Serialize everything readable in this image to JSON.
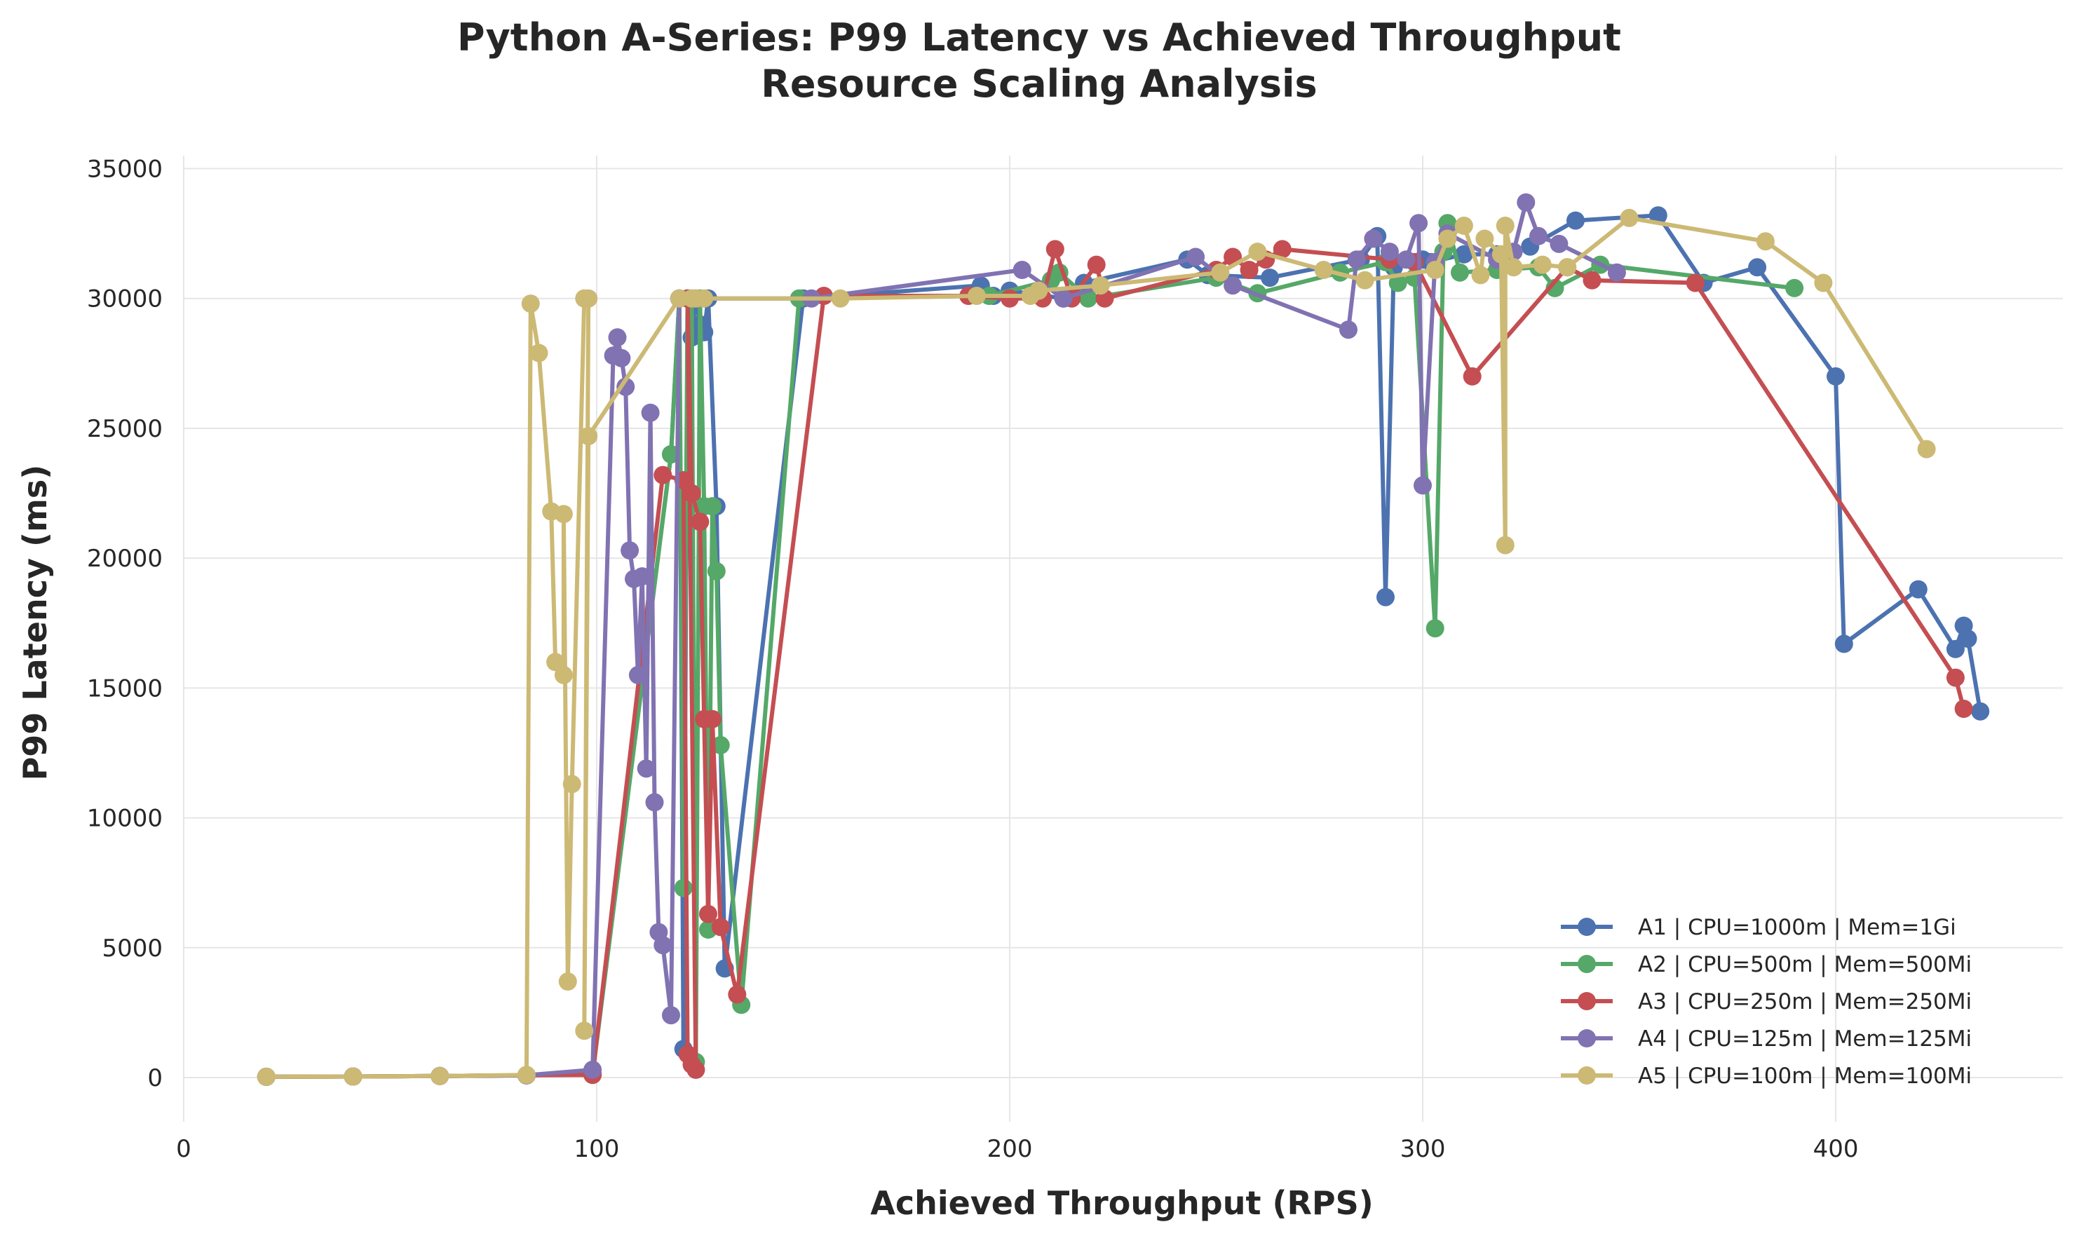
{
  "chart_data": {
    "type": "line",
    "title": "Python A-Series: P99 Latency vs Achieved Throughput",
    "subtitle": "Resource Scaling Analysis",
    "xlabel": "Achieved Throughput (RPS)",
    "ylabel": "P99 Latency (ms)",
    "xlim": [
      0,
      455
    ],
    "ylim": [
      -1700,
      35500
    ],
    "xticks": [
      0,
      100,
      200,
      300,
      400
    ],
    "yticks": [
      0,
      5000,
      10000,
      15000,
      20000,
      25000,
      30000,
      35000
    ],
    "grid": true,
    "legend_position": "bottom-right",
    "series": [
      {
        "name": "A1 | CPU=1000m | Mem=1Gi",
        "color": "#4c72b0",
        "points": [
          [
            20,
            30
          ],
          [
            41,
            40
          ],
          [
            62,
            60
          ],
          [
            83,
            90
          ],
          [
            99,
            150
          ],
          [
            118,
            24000
          ],
          [
            120,
            30000
          ],
          [
            121,
            1100
          ],
          [
            122,
            30000
          ],
          [
            123,
            28500
          ],
          [
            124,
            30000
          ],
          [
            125,
            29000
          ],
          [
            126,
            28700
          ],
          [
            127,
            30000
          ],
          [
            129,
            22000
          ],
          [
            131,
            4200
          ],
          [
            150,
            30000
          ],
          [
            193,
            30500
          ],
          [
            196,
            30100
          ],
          [
            200,
            30300
          ],
          [
            213,
            30000
          ],
          [
            218,
            30600
          ],
          [
            243,
            31500
          ],
          [
            248,
            30900
          ],
          [
            263,
            30800
          ],
          [
            285,
            31500
          ],
          [
            289,
            32400
          ],
          [
            291,
            18500
          ],
          [
            293,
            31200
          ],
          [
            300,
            31500
          ],
          [
            302,
            31400
          ],
          [
            310,
            31700
          ],
          [
            318,
            31700
          ],
          [
            326,
            32000
          ],
          [
            337,
            33000
          ],
          [
            357,
            33200
          ],
          [
            368,
            30600
          ],
          [
            381,
            31200
          ],
          [
            400,
            27000
          ],
          [
            402,
            16700
          ],
          [
            420,
            18800
          ],
          [
            429,
            16500
          ],
          [
            431,
            17400
          ],
          [
            432,
            16900
          ],
          [
            435,
            14100
          ]
        ]
      },
      {
        "name": "A2 | CPU=500m | Mem=500Mi",
        "color": "#55a868",
        "points": [
          [
            20,
            30
          ],
          [
            41,
            40
          ],
          [
            62,
            60
          ],
          [
            83,
            90
          ],
          [
            99,
            120
          ],
          [
            118,
            24000
          ],
          [
            120,
            30000
          ],
          [
            121,
            7300
          ],
          [
            122,
            30000
          ],
          [
            123,
            30000
          ],
          [
            124,
            600
          ],
          [
            125,
            30000
          ],
          [
            126,
            22000
          ],
          [
            127,
            5700
          ],
          [
            128,
            22000
          ],
          [
            129,
            19500
          ],
          [
            130,
            12800
          ],
          [
            135,
            2800
          ],
          [
            149,
            30000
          ],
          [
            195,
            30100
          ],
          [
            210,
            30700
          ],
          [
            212,
            31000
          ],
          [
            219,
            30000
          ],
          [
            250,
            30800
          ],
          [
            260,
            30200
          ],
          [
            280,
            31000
          ],
          [
            291,
            31400
          ],
          [
            294,
            30600
          ],
          [
            298,
            30800
          ],
          [
            303,
            17300
          ],
          [
            305,
            31800
          ],
          [
            306,
            32900
          ],
          [
            309,
            31000
          ],
          [
            318,
            31100
          ],
          [
            328,
            31200
          ],
          [
            332,
            30400
          ],
          [
            343,
            31300
          ],
          [
            390,
            30400
          ]
        ]
      },
      {
        "name": "A3 | CPU=250m | Mem=250Mi",
        "color": "#c44e52",
        "points": [
          [
            20,
            30
          ],
          [
            41,
            40
          ],
          [
            62,
            60
          ],
          [
            83,
            90
          ],
          [
            99,
            100
          ],
          [
            116,
            23200
          ],
          [
            121,
            23000
          ],
          [
            122,
            900
          ],
          [
            123,
            500
          ],
          [
            124,
            300
          ],
          [
            122,
            30000
          ],
          [
            123,
            22500
          ],
          [
            125,
            21400
          ],
          [
            126,
            13800
          ],
          [
            127,
            6300
          ],
          [
            128,
            13800
          ],
          [
            130,
            5800
          ],
          [
            134,
            3200
          ],
          [
            155,
            30100
          ],
          [
            190,
            30100
          ],
          [
            200,
            30000
          ],
          [
            208,
            30000
          ],
          [
            211,
            31900
          ],
          [
            215,
            30000
          ],
          [
            221,
            31300
          ],
          [
            223,
            30000
          ],
          [
            250,
            31100
          ],
          [
            254,
            31600
          ],
          [
            258,
            31100
          ],
          [
            262,
            31500
          ],
          [
            266,
            31900
          ],
          [
            292,
            31500
          ],
          [
            298,
            31400
          ],
          [
            312,
            27000
          ],
          [
            335,
            31200
          ],
          [
            341,
            30700
          ],
          [
            366,
            30600
          ],
          [
            429,
            15400
          ],
          [
            431,
            14200
          ]
        ]
      },
      {
        "name": "A4 | CPU=125m | Mem=125Mi",
        "color": "#8172b2",
        "points": [
          [
            20,
            30
          ],
          [
            41,
            40
          ],
          [
            62,
            60
          ],
          [
            83,
            90
          ],
          [
            99,
            300
          ],
          [
            104,
            27800
          ],
          [
            105,
            28500
          ],
          [
            106,
            27700
          ],
          [
            107,
            26600
          ],
          [
            108,
            20300
          ],
          [
            109,
            19200
          ],
          [
            110,
            15500
          ],
          [
            111,
            19300
          ],
          [
            112,
            11900
          ],
          [
            113,
            25600
          ],
          [
            114,
            10600
          ],
          [
            115,
            5600
          ],
          [
            116,
            5100
          ],
          [
            118,
            2400
          ],
          [
            120,
            30000
          ],
          [
            152,
            30000
          ],
          [
            203,
            31100
          ],
          [
            213,
            30000
          ],
          [
            245,
            31600
          ],
          [
            254,
            30500
          ],
          [
            282,
            28800
          ],
          [
            284,
            31500
          ],
          [
            288,
            32300
          ],
          [
            292,
            31800
          ],
          [
            296,
            31500
          ],
          [
            299,
            32900
          ],
          [
            300,
            22800
          ],
          [
            303,
            31400
          ],
          [
            306,
            32500
          ],
          [
            318,
            31500
          ],
          [
            322,
            31800
          ],
          [
            325,
            33700
          ],
          [
            328,
            32400
          ],
          [
            333,
            32100
          ],
          [
            347,
            31000
          ]
        ]
      },
      {
        "name": "A5 | CPU=100m | Mem=100Mi",
        "color": "#ccb974",
        "points": [
          [
            20,
            30
          ],
          [
            41,
            40
          ],
          [
            62,
            60
          ],
          [
            83,
            100
          ],
          [
            84,
            29800
          ],
          [
            86,
            27900
          ],
          [
            89,
            21800
          ],
          [
            90,
            16000
          ],
          [
            92,
            15500
          ],
          [
            92,
            21700
          ],
          [
            93,
            3700
          ],
          [
            94,
            11300
          ],
          [
            97,
            30000
          ],
          [
            98,
            30000
          ],
          [
            97,
            1800
          ],
          [
            98,
            24700
          ],
          [
            120,
            30000
          ],
          [
            123,
            30000
          ],
          [
            124,
            30000
          ],
          [
            126,
            30000
          ],
          [
            159,
            30000
          ],
          [
            192,
            30100
          ],
          [
            205,
            30100
          ],
          [
            207,
            30300
          ],
          [
            222,
            30500
          ],
          [
            251,
            31000
          ],
          [
            260,
            31800
          ],
          [
            276,
            31100
          ],
          [
            286,
            30700
          ],
          [
            303,
            31100
          ],
          [
            306,
            32300
          ],
          [
            310,
            32800
          ],
          [
            314,
            30900
          ],
          [
            315,
            32300
          ],
          [
            319,
            31700
          ],
          [
            320,
            20500
          ],
          [
            320,
            32800
          ],
          [
            322,
            31200
          ],
          [
            329,
            31300
          ],
          [
            335,
            31200
          ],
          [
            350,
            33100
          ],
          [
            383,
            32200
          ],
          [
            397,
            30600
          ],
          [
            422,
            24200
          ]
        ]
      }
    ]
  }
}
